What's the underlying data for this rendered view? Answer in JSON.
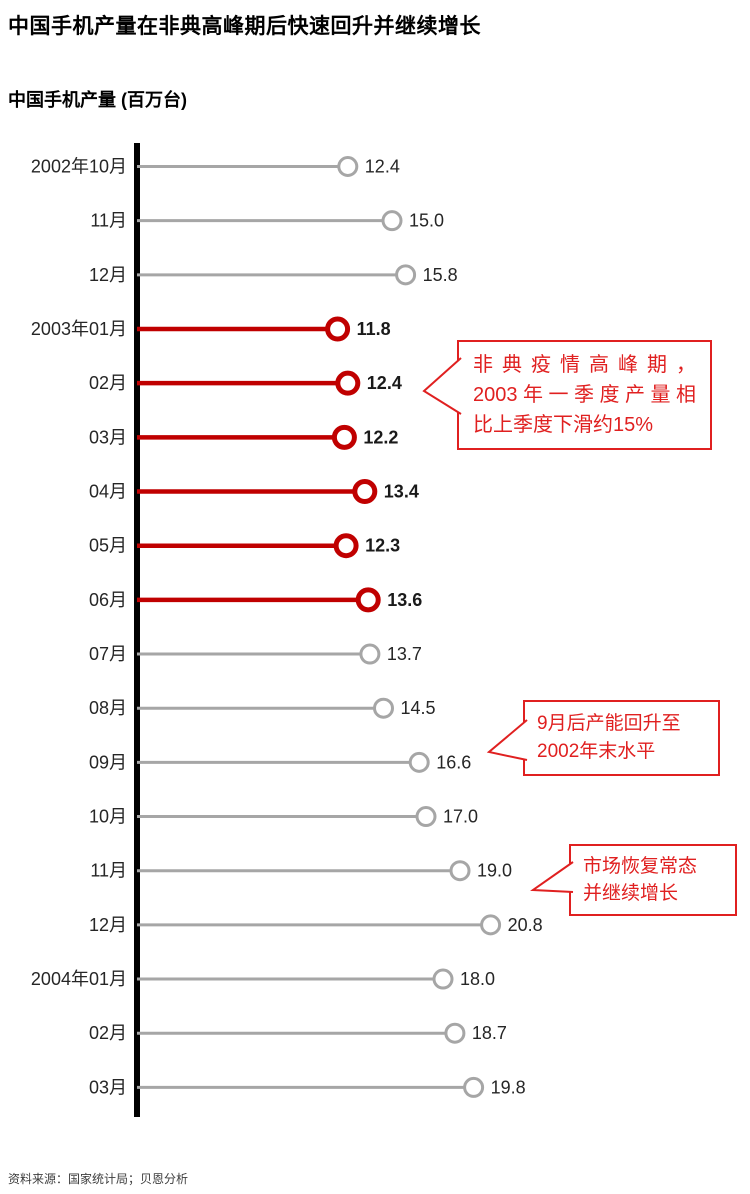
{
  "page": {
    "title": "中国手机产量在非典高峰期后快速回升并继续增长",
    "source": "资料来源：国家统计局；贝恩分析"
  },
  "colors": {
    "highlight": "#c00000",
    "normal": "#a6a6a6",
    "annotation": "#e02020",
    "axis": "#000000",
    "value_text": "#262626",
    "value_text_highlight": "#1a1a1a"
  },
  "chart_data": {
    "type": "lollipop",
    "title": "中国手机产量 (百万台)",
    "unit": "百万台",
    "categories": [
      "2002年10月",
      "11月",
      "12月",
      "2003年01月",
      "02月",
      "03月",
      "04月",
      "05月",
      "06月",
      "07月",
      "08月",
      "09月",
      "10月",
      "11月",
      "12月",
      "2004年01月",
      "02月",
      "03月"
    ],
    "values": [
      12.4,
      15.0,
      15.8,
      11.8,
      12.4,
      12.2,
      13.4,
      12.3,
      13.6,
      13.7,
      14.5,
      16.6,
      17.0,
      19.0,
      20.8,
      18.0,
      18.7,
      19.8
    ],
    "highlight_indices": [
      3,
      4,
      5,
      6,
      7,
      8
    ],
    "xlim": [
      0,
      22
    ],
    "legend": "none",
    "grid": "off",
    "annotations": [
      {
        "lines": [
          "非典疫情高峰期，",
          "2003年一季度产量相",
          "比上季度下滑约15%"
        ],
        "justify": true,
        "target": "2003年02月"
      },
      {
        "lines": [
          "9月后产能回升至",
          "2002年末水平"
        ],
        "justify": false,
        "target": "2003年09月"
      },
      {
        "lines": [
          "市场恢复常态",
          "并继续增长"
        ],
        "justify": false,
        "target": "2003年11月"
      }
    ]
  }
}
